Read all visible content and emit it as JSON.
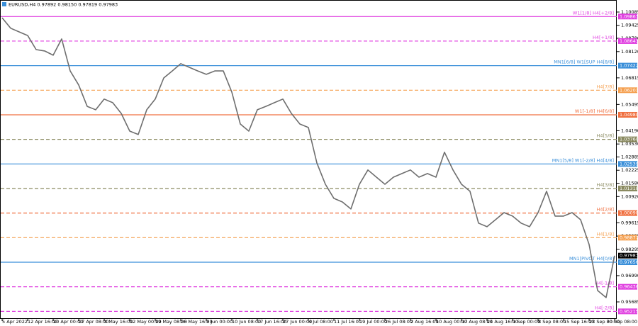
{
  "chart_data": {
    "type": "line",
    "title": "EURUSD,H4  0.97892 0.98150 0.97819 0.97983",
    "categories": [
      "5 Apr 2022",
      null,
      null,
      "12 Apr 16:00",
      null,
      null,
      "20 Apr 00:00",
      null,
      null,
      "27 Apr 08:00",
      null,
      null,
      "4 May 16:00",
      null,
      null,
      "12 May 00:00",
      null,
      null,
      "19 May 08:00",
      null,
      null,
      "26 May 16:00",
      null,
      null,
      "3 Jun 00:00",
      null,
      null,
      "10 Jun 08:00",
      null,
      null,
      "17 Jun 16:00",
      null,
      null,
      "27 Jun 00:00",
      null,
      null,
      "4 Jul 08:00",
      null,
      null,
      "11 Jul 16:00",
      null,
      null,
      "19 Jul 00:00",
      null,
      null,
      "26 Jul 08:00",
      null,
      null,
      "2 Aug 16:00",
      null,
      null,
      "10 Aug 00:00",
      null,
      null,
      "17 Aug 08:00",
      null,
      null,
      "24 Aug 16:00",
      null,
      null,
      "1 Sep 00:00",
      null,
      null,
      "8 Sep 08:00",
      null,
      null,
      "15 Sep 16:00",
      null,
      null,
      "23 Sep 00:00",
      null,
      null,
      "30 Sep 08:00"
    ],
    "values": [
      1.098,
      1.0928,
      1.091,
      1.0892,
      1.0822,
      1.0815,
      1.0794,
      1.0875,
      1.0716,
      1.0646,
      1.054,
      1.0523,
      1.0576,
      1.0558,
      1.0505,
      1.0417,
      1.04,
      1.0523,
      1.0576,
      1.0681,
      1.0716,
      1.0752,
      1.0734,
      1.0716,
      1.0699,
      1.0716,
      1.0716,
      1.0611,
      1.0452,
      1.0417,
      1.0523,
      1.054,
      1.0558,
      1.0576,
      1.0505,
      1.0452,
      1.0435,
      1.0259,
      1.0153,
      1.0083,
      1.0065,
      1.003,
      1.0153,
      1.0224,
      1.0188,
      1.0153,
      1.0188,
      1.0206,
      1.0224,
      1.0188,
      1.0206,
      1.0188,
      1.0312,
      1.0224,
      1.0153,
      1.0118,
      0.996,
      0.9942,
      0.9977,
      1.0012,
      0.9995,
      0.996,
      0.9942,
      1.0012,
      1.0118,
      0.9995,
      0.9995,
      1.0012,
      0.9977,
      0.9854,
      0.9625,
      0.959,
      0.9798
    ],
    "color": "#6e6e6e",
    "ylim": [
      0.94875,
      1.10683
    ],
    "yticks": [
      1.10085,
      1.09425,
      {
        "value": 1.0878,
        "label": "1.08780"
      },
      {
        "value": 1.0812,
        "label": "1.08120"
      },
      1.06815,
      1.05495,
      {
        "value": 1.0419,
        "label": "1.04190"
      },
      {
        "value": 1.0353,
        "label": "1.03530"
      },
      1.02885,
      1.02225,
      {
        "value": 1.0158,
        "label": "1.01580"
      },
      {
        "value": 1.0092,
        "label": "1.00920"
      },
      0.99615,
      0.98955,
      0.98295,
      {
        "value": 0.9699,
        "label": "0.96990"
      },
      0.95685
    ],
    "levels": [
      {
        "name": "W1[1/8] H4[+2/8]",
        "price": 1.09863,
        "price_label": "1.09863",
        "color": "#e040e0",
        "style": "solid"
      },
      {
        "name": "H4[+1/8]",
        "price": 1.08643,
        "price_label": "1.08643",
        "color": "#e040e0",
        "style": "dashed"
      },
      {
        "name": "MN1[6/8] W1[SUP H4[8/8]",
        "price": 1.07422,
        "price_label": "1.07422",
        "color": "#3a8fd9",
        "style": "solid"
      },
      {
        "name": "H4[7/8]",
        "price": 1.06201,
        "price_label": "1.06201",
        "color": "#f5a050",
        "style": "dashed"
      },
      {
        "name": "W1[-1/8] H4[6/8]",
        "price": 1.0498,
        "price_label": "1.04980",
        "color": "#f07040",
        "style": "solid"
      },
      {
        "name": "H4[5/8]",
        "price": 1.0376,
        "price_label": "1.03760",
        "color": "#8a8a60",
        "style": "dashed"
      },
      {
        "name": "MN1[5/8] W1[-2/8] H4[4/8]",
        "price": 1.02539,
        "price_label": "1.02539",
        "color": "#3a8fd9",
        "style": "solid"
      },
      {
        "name": "H4[3/8]",
        "price": 1.01318,
        "price_label": "1.01318",
        "color": "#8a8a60",
        "style": "dashed"
      },
      {
        "name": "H4[2/8]",
        "price": 1.00098,
        "price_label": "1.00098",
        "color": "#f07040",
        "style": "dashed"
      },
      {
        "name": "H4[1/8]",
        "price": 0.98877,
        "price_label": "0.98877",
        "color": "#f5a050",
        "style": "dashed"
      },
      {
        "name": "MN1[PIVOT H4[0/8]",
        "price": 0.97656,
        "price_label": "0.97656",
        "color": "#3a8fd9",
        "style": "solid"
      },
      {
        "name": "H4[-1/8]",
        "price": 0.96436,
        "price_label": "0.96436",
        "color": "#e040e0",
        "style": "dashed"
      },
      {
        "name": "H4[-2/8]",
        "price": 0.95215,
        "price_label": "0.95215",
        "color": "#e040e0",
        "style": "dashed"
      }
    ],
    "last_price": 0.97983
  }
}
